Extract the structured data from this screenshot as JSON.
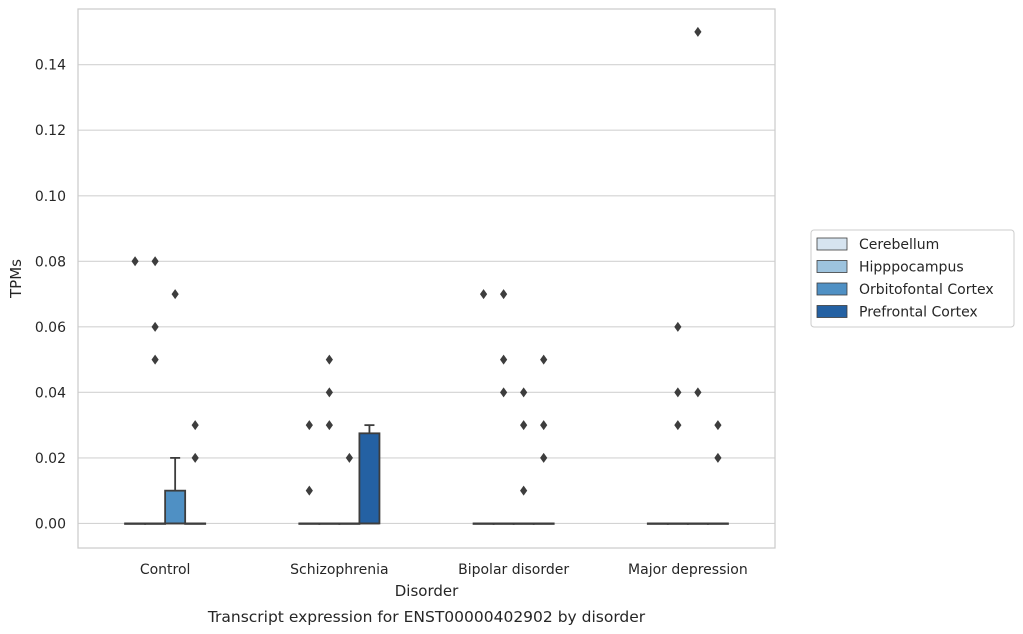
{
  "chart_data": {
    "type": "boxplot",
    "caption": "Transcript expression for ENST00000402902 by disorder",
    "xlabel": "Disorder",
    "ylabel": "TPMs",
    "categories": [
      "Control",
      "Schizophrenia",
      "Bipolar disorder",
      "Major depression"
    ],
    "ylim": [
      -0.0075,
      0.157
    ],
    "yticks": [
      "0.00",
      "0.02",
      "0.04",
      "0.06",
      "0.08",
      "0.10",
      "0.12",
      "0.14"
    ],
    "grid": "horizontal",
    "legend_position": "right",
    "series": [
      {
        "name": "Cerebellum",
        "color": "#d6e4f0",
        "boxes": [
          {
            "q1": 0,
            "median": 0,
            "q3": 0,
            "whisker_low": 0,
            "whisker_high": 0,
            "outliers": [
              0.08
            ]
          },
          {
            "q1": 0,
            "median": 0,
            "q3": 0,
            "whisker_low": 0,
            "whisker_high": 0,
            "outliers": [
              0.01,
              0.03
            ]
          },
          {
            "q1": 0,
            "median": 0,
            "q3": 0,
            "whisker_low": 0,
            "whisker_high": 0,
            "outliers": [
              0.07
            ]
          },
          {
            "q1": 0,
            "median": 0,
            "q3": 0,
            "whisker_low": 0,
            "whisker_high": 0,
            "outliers": []
          }
        ]
      },
      {
        "name": "Hipppocampus",
        "color": "#9dc3de",
        "boxes": [
          {
            "q1": 0,
            "median": 0,
            "q3": 0,
            "whisker_low": 0,
            "whisker_high": 0,
            "outliers": [
              0.05,
              0.06,
              0.08
            ]
          },
          {
            "q1": 0,
            "median": 0,
            "q3": 0,
            "whisker_low": 0,
            "whisker_high": 0,
            "outliers": [
              0.03,
              0.04,
              0.05
            ]
          },
          {
            "q1": 0,
            "median": 0,
            "q3": 0,
            "whisker_low": 0,
            "whisker_high": 0,
            "outliers": [
              0.04,
              0.05,
              0.07
            ]
          },
          {
            "q1": 0,
            "median": 0,
            "q3": 0,
            "whisker_low": 0,
            "whisker_high": 0,
            "outliers": [
              0.03,
              0.04,
              0.06
            ]
          }
        ]
      },
      {
        "name": "Orbitofontal Cortex",
        "color": "#4f90c4",
        "boxes": [
          {
            "q1": 0,
            "median": 0,
            "q3": 0.01,
            "whisker_low": 0,
            "whisker_high": 0.02,
            "outliers": [
              0.07
            ]
          },
          {
            "q1": 0,
            "median": 0,
            "q3": 0,
            "whisker_low": 0,
            "whisker_high": 0,
            "outliers": [
              0.02
            ]
          },
          {
            "q1": 0,
            "median": 0,
            "q3": 0,
            "whisker_low": 0,
            "whisker_high": 0,
            "outliers": [
              0.01,
              0.03,
              0.04
            ]
          },
          {
            "q1": 0,
            "median": 0,
            "q3": 0,
            "whisker_low": 0,
            "whisker_high": 0,
            "outliers": [
              0.04,
              0.15
            ]
          }
        ]
      },
      {
        "name": "Prefrontal Cortex",
        "color": "#2461a3",
        "boxes": [
          {
            "q1": 0,
            "median": 0,
            "q3": 0,
            "whisker_low": 0,
            "whisker_high": 0,
            "outliers": [
              0.02,
              0.03
            ]
          },
          {
            "q1": 0,
            "median": 0,
            "q3": 0.0275,
            "whisker_low": 0,
            "whisker_high": 0.03,
            "outliers": []
          },
          {
            "q1": 0,
            "median": 0,
            "q3": 0,
            "whisker_low": 0,
            "whisker_high": 0,
            "outliers": [
              0.02,
              0.03,
              0.05
            ]
          },
          {
            "q1": 0,
            "median": 0,
            "q3": 0,
            "whisker_low": 0,
            "whisker_high": 0,
            "outliers": [
              0.02,
              0.03
            ]
          }
        ]
      }
    ]
  }
}
